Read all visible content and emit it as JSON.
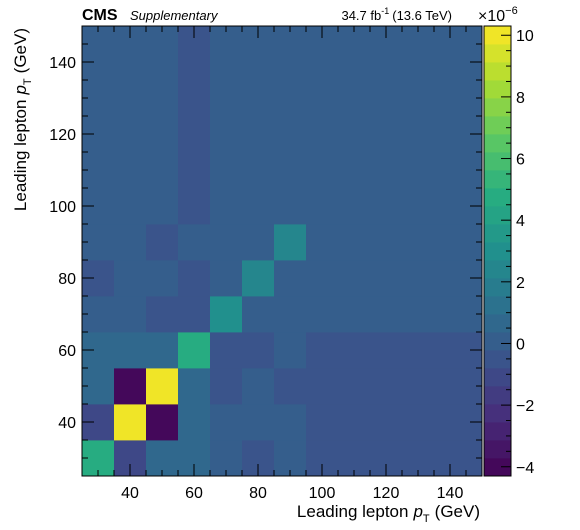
{
  "header": {
    "experiment": "CMS",
    "label": "Supplementary",
    "lumi": "34.7 fb",
    "lumi_exp": "-1",
    "energy": "(13.6 TeV)"
  },
  "chart_data": {
    "type": "heatmap",
    "xlabel": "Leading lepton",
    "ylabel": "Leading lepton",
    "label_var": "p",
    "label_sub": "T",
    "label_unit": "(GeV)",
    "x_edges": [
      25,
      35,
      45,
      55,
      65,
      75,
      85,
      95,
      150
    ],
    "y_edges": [
      25,
      35,
      45,
      55,
      65,
      75,
      85,
      95,
      150
    ],
    "xlim": [
      25,
      150
    ],
    "ylim": [
      25,
      150
    ],
    "x_ticks": [
      40,
      60,
      80,
      100,
      120,
      140
    ],
    "y_ticks": [
      40,
      60,
      80,
      100,
      120,
      140
    ],
    "z": [
      [
        4.5,
        -0.8,
        0.8,
        0.8,
        0.0,
        -0.5,
        0.3,
        0.0
      ],
      [
        -0.8,
        10.0,
        -4.0,
        0.8,
        0.3,
        0.3,
        0.3,
        0.0
      ],
      [
        0.8,
        -4.0,
        10.0,
        0.8,
        -0.5,
        0.3,
        -0.3,
        0.0
      ],
      [
        0.8,
        0.8,
        0.8,
        5.0,
        -0.5,
        -0.5,
        0.3,
        -0.3
      ],
      [
        0.3,
        0.3,
        -0.5,
        -0.5,
        3.0,
        0.0,
        0.0,
        0.0
      ],
      [
        -0.5,
        0.3,
        0.3,
        -0.5,
        0.3,
        2.5,
        0.0,
        0.0
      ],
      [
        0.3,
        0.3,
        -0.3,
        0.3,
        0.3,
        0.0,
        2.5,
        0.3
      ],
      [
        -0.3,
        -0.3,
        -0.3,
        -0.3,
        0.3,
        0.3,
        0.3,
        0.3
      ]
    ],
    "zlim": [
      -4.3,
      10.3
    ],
    "colorbar": {
      "ticks": [
        -4,
        -2,
        0,
        2,
        4,
        6,
        8,
        10
      ],
      "multiplier_base": "×10",
      "multiplier_exp": "−6",
      "colormap": "viridis",
      "levels": 25
    }
  }
}
